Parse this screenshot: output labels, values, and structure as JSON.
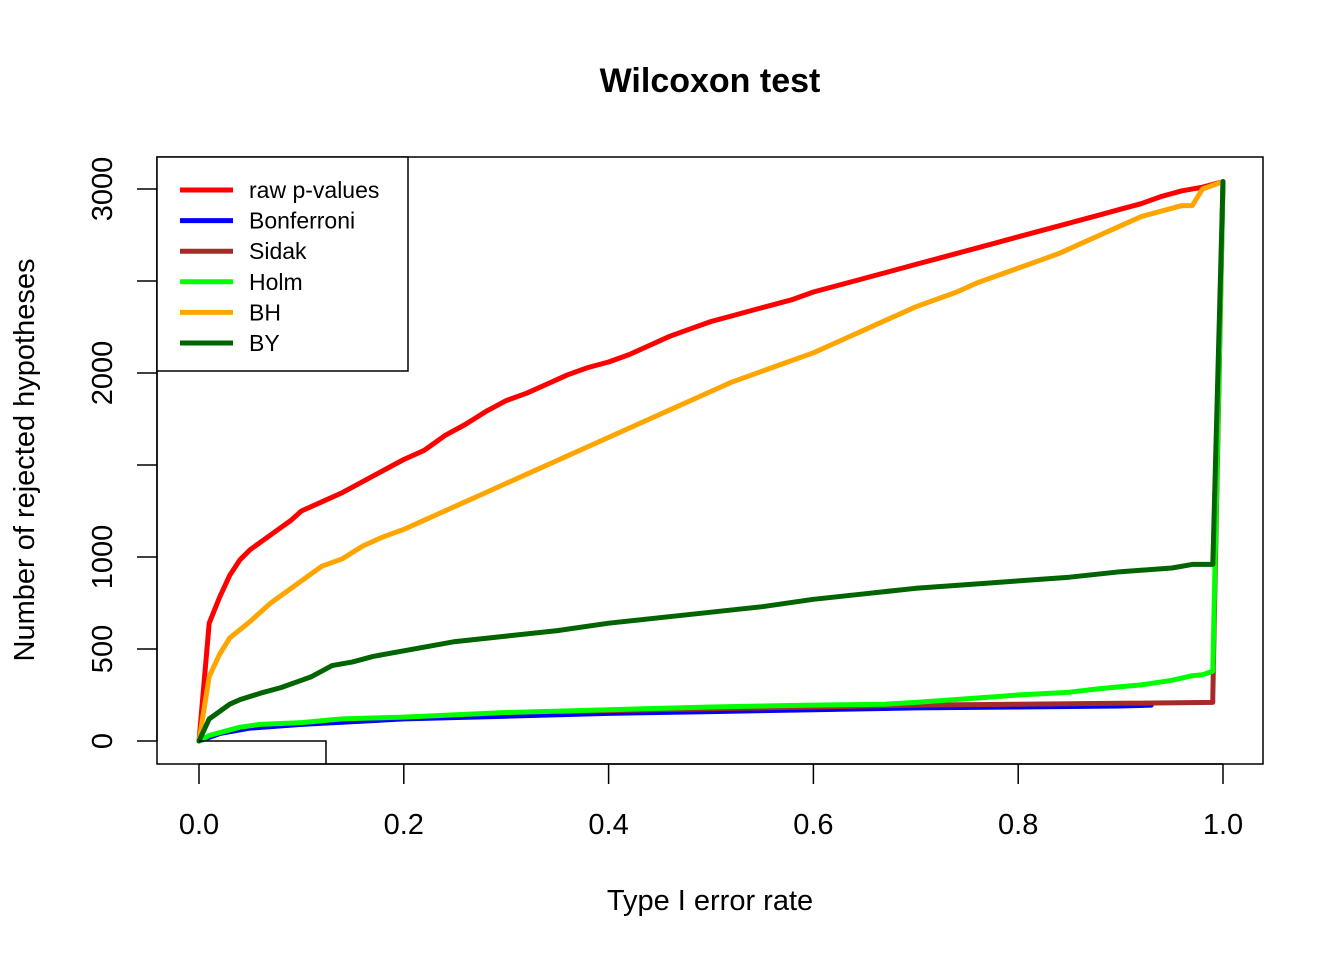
{
  "chart_data": {
    "type": "line",
    "title": "Wilcoxon test",
    "xlabel": "Type I error rate",
    "ylabel": "Number of rejected hypotheses",
    "xlim": [
      0,
      1
    ],
    "ylim": [
      -120,
      3200
    ],
    "xticks": [
      0.0,
      0.2,
      0.4,
      0.6,
      0.8,
      1.0
    ],
    "xtick_labels": [
      "0.0",
      "0.2",
      "0.4",
      "0.6",
      "0.8",
      "1.0"
    ],
    "yticks": [
      0,
      500,
      1000,
      1500,
      2000,
      2500,
      3000
    ],
    "ytick_labels": [
      "0",
      "500",
      "1000",
      "",
      "2000",
      "",
      "3000"
    ],
    "grid": false,
    "legend_position": "top-left",
    "series": [
      {
        "name": "raw p-values",
        "color": "#FF0000",
        "points": [
          [
            0,
            0
          ],
          [
            0.01,
            640
          ],
          [
            0.02,
            780
          ],
          [
            0.03,
            900
          ],
          [
            0.04,
            985
          ],
          [
            0.05,
            1040
          ],
          [
            0.07,
            1120
          ],
          [
            0.09,
            1200
          ],
          [
            0.1,
            1250
          ],
          [
            0.12,
            1300
          ],
          [
            0.14,
            1350
          ],
          [
            0.16,
            1410
          ],
          [
            0.18,
            1470
          ],
          [
            0.2,
            1530
          ],
          [
            0.22,
            1580
          ],
          [
            0.24,
            1660
          ],
          [
            0.26,
            1720
          ],
          [
            0.28,
            1790
          ],
          [
            0.3,
            1850
          ],
          [
            0.32,
            1890
          ],
          [
            0.34,
            1940
          ],
          [
            0.36,
            1990
          ],
          [
            0.38,
            2030
          ],
          [
            0.4,
            2060
          ],
          [
            0.42,
            2100
          ],
          [
            0.44,
            2150
          ],
          [
            0.46,
            2200
          ],
          [
            0.48,
            2240
          ],
          [
            0.5,
            2280
          ],
          [
            0.52,
            2310
          ],
          [
            0.54,
            2340
          ],
          [
            0.56,
            2370
          ],
          [
            0.58,
            2400
          ],
          [
            0.6,
            2440
          ],
          [
            0.62,
            2470
          ],
          [
            0.64,
            2500
          ],
          [
            0.66,
            2530
          ],
          [
            0.68,
            2560
          ],
          [
            0.7,
            2590
          ],
          [
            0.72,
            2620
          ],
          [
            0.74,
            2650
          ],
          [
            0.76,
            2680
          ],
          [
            0.78,
            2710
          ],
          [
            0.8,
            2740
          ],
          [
            0.82,
            2770
          ],
          [
            0.84,
            2800
          ],
          [
            0.86,
            2830
          ],
          [
            0.88,
            2860
          ],
          [
            0.9,
            2890
          ],
          [
            0.92,
            2920
          ],
          [
            0.94,
            2960
          ],
          [
            0.96,
            2990
          ],
          [
            0.98,
            3010
          ],
          [
            1.0,
            3040
          ]
        ]
      },
      {
        "name": "Bonferroni",
        "color": "#0000FF",
        "points": [
          [
            0,
            0
          ],
          [
            0.02,
            40
          ],
          [
            0.05,
            70
          ],
          [
            0.1,
            90
          ],
          [
            0.2,
            120
          ],
          [
            0.3,
            135
          ],
          [
            0.4,
            150
          ],
          [
            0.5,
            160
          ],
          [
            0.6,
            170
          ],
          [
            0.7,
            180
          ],
          [
            0.8,
            185
          ],
          [
            0.9,
            190
          ],
          [
            0.93,
            195
          ]
        ]
      },
      {
        "name": "Sidak",
        "color": "#A52A2A",
        "points": [
          [
            0.35,
            160
          ],
          [
            0.4,
            165
          ],
          [
            0.5,
            175
          ],
          [
            0.6,
            185
          ],
          [
            0.7,
            195
          ],
          [
            0.8,
            200
          ],
          [
            0.9,
            205
          ],
          [
            0.99,
            210
          ],
          [
            0.99,
            240
          ],
          [
            1.0,
            3040
          ]
        ]
      },
      {
        "name": "Holm",
        "color": "#00FF00",
        "points": [
          [
            0,
            0
          ],
          [
            0.01,
            30
          ],
          [
            0.02,
            45
          ],
          [
            0.04,
            75
          ],
          [
            0.06,
            90
          ],
          [
            0.1,
            100
          ],
          [
            0.14,
            120
          ],
          [
            0.2,
            130
          ],
          [
            0.3,
            155
          ],
          [
            0.4,
            170
          ],
          [
            0.5,
            185
          ],
          [
            0.6,
            195
          ],
          [
            0.67,
            200
          ],
          [
            0.7,
            210
          ],
          [
            0.75,
            230
          ],
          [
            0.8,
            250
          ],
          [
            0.85,
            265
          ],
          [
            0.88,
            285
          ],
          [
            0.92,
            305
          ],
          [
            0.95,
            330
          ],
          [
            0.97,
            355
          ],
          [
            0.98,
            360
          ],
          [
            0.99,
            380
          ],
          [
            1.0,
            3040
          ]
        ]
      },
      {
        "name": "BH",
        "color": "#FFA500",
        "points": [
          [
            0,
            0
          ],
          [
            0.01,
            350
          ],
          [
            0.02,
            470
          ],
          [
            0.03,
            560
          ],
          [
            0.05,
            650
          ],
          [
            0.07,
            750
          ],
          [
            0.09,
            830
          ],
          [
            0.1,
            870
          ],
          [
            0.12,
            950
          ],
          [
            0.14,
            990
          ],
          [
            0.16,
            1060
          ],
          [
            0.18,
            1110
          ],
          [
            0.2,
            1150
          ],
          [
            0.22,
            1200
          ],
          [
            0.24,
            1250
          ],
          [
            0.26,
            1300
          ],
          [
            0.28,
            1350
          ],
          [
            0.3,
            1400
          ],
          [
            0.32,
            1450
          ],
          [
            0.34,
            1500
          ],
          [
            0.36,
            1550
          ],
          [
            0.38,
            1600
          ],
          [
            0.4,
            1650
          ],
          [
            0.42,
            1700
          ],
          [
            0.44,
            1750
          ],
          [
            0.46,
            1800
          ],
          [
            0.48,
            1850
          ],
          [
            0.5,
            1900
          ],
          [
            0.52,
            1950
          ],
          [
            0.54,
            1990
          ],
          [
            0.56,
            2030
          ],
          [
            0.58,
            2070
          ],
          [
            0.6,
            2110
          ],
          [
            0.62,
            2160
          ],
          [
            0.64,
            2210
          ],
          [
            0.66,
            2260
          ],
          [
            0.68,
            2310
          ],
          [
            0.7,
            2360
          ],
          [
            0.72,
            2400
          ],
          [
            0.74,
            2440
          ],
          [
            0.76,
            2490
          ],
          [
            0.78,
            2530
          ],
          [
            0.8,
            2570
          ],
          [
            0.82,
            2610
          ],
          [
            0.84,
            2650
          ],
          [
            0.86,
            2700
          ],
          [
            0.88,
            2750
          ],
          [
            0.9,
            2800
          ],
          [
            0.92,
            2850
          ],
          [
            0.94,
            2880
          ],
          [
            0.96,
            2910
          ],
          [
            0.97,
            2910
          ],
          [
            0.98,
            3000
          ],
          [
            1.0,
            3040
          ]
        ]
      },
      {
        "name": "BY",
        "color": "#006400",
        "points": [
          [
            0,
            0
          ],
          [
            0.01,
            120
          ],
          [
            0.02,
            160
          ],
          [
            0.03,
            200
          ],
          [
            0.04,
            225
          ],
          [
            0.06,
            260
          ],
          [
            0.08,
            290
          ],
          [
            0.1,
            330
          ],
          [
            0.11,
            350
          ],
          [
            0.12,
            380
          ],
          [
            0.13,
            410
          ],
          [
            0.15,
            430
          ],
          [
            0.17,
            460
          ],
          [
            0.2,
            490
          ],
          [
            0.25,
            540
          ],
          [
            0.3,
            570
          ],
          [
            0.35,
            600
          ],
          [
            0.4,
            640
          ],
          [
            0.45,
            670
          ],
          [
            0.5,
            700
          ],
          [
            0.55,
            730
          ],
          [
            0.6,
            770
          ],
          [
            0.65,
            800
          ],
          [
            0.7,
            830
          ],
          [
            0.75,
            850
          ],
          [
            0.8,
            870
          ],
          [
            0.85,
            890
          ],
          [
            0.9,
            920
          ],
          [
            0.95,
            940
          ],
          [
            0.97,
            960
          ],
          [
            0.99,
            960
          ],
          [
            1.0,
            3040
          ]
        ]
      }
    ]
  }
}
